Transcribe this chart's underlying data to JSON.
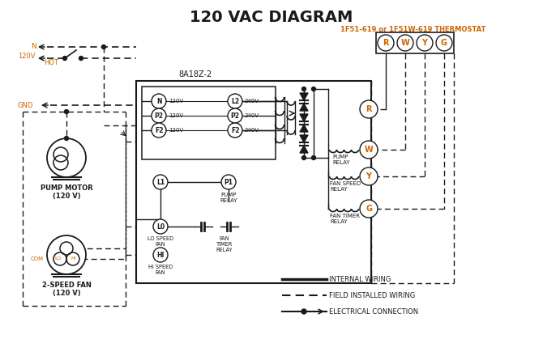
{
  "title": "120 VAC DIAGRAM",
  "title_color": "#1a1a1a",
  "title_fontsize": 14,
  "thermostat_label": "1F51-619 or 1F51W-619 THERMOSTAT",
  "thermostat_color": "#cc6600",
  "controller_label": "8A18Z-2",
  "pump_motor_label": "PUMP MOTOR\n(120 V)",
  "fan_label": "2-SPEED FAN\n(120 V)",
  "legend_internal": "INTERNAL WIRING",
  "legend_field": "FIELD INSTALLED WIRING",
  "legend_electrical": "ELECTRICAL CONNECTION",
  "bg_color": "#ffffff",
  "line_color": "#1a1a1a",
  "orange_color": "#cc6600"
}
